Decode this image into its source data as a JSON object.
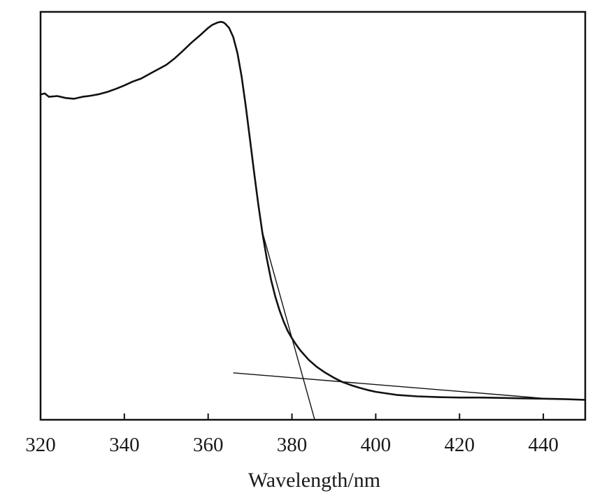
{
  "chart_data": {
    "type": "line",
    "title": "",
    "xlabel": "Wavelength/nm",
    "ylabel": "",
    "xlim": [
      320,
      450
    ],
    "ylim": [
      0,
      1.0
    ],
    "x_ticks": [
      320,
      340,
      360,
      380,
      400,
      420,
      440
    ],
    "x_tick_labels": [
      "320",
      "340",
      "360",
      "380",
      "400",
      "420",
      "440"
    ],
    "y_ticks_shown": false,
    "grid": false,
    "legend": "none",
    "line_color": "#111111",
    "series": [
      {
        "x": [
          320,
          321,
          322,
          324,
          326,
          328,
          330,
          332,
          334,
          336,
          338,
          340,
          342,
          344,
          346,
          348,
          350,
          352,
          354,
          356,
          358,
          359,
          360,
          361,
          362,
          362.5,
          363,
          363.5,
          364,
          365,
          366,
          367,
          368,
          369,
          370,
          371,
          372,
          373,
          374,
          375,
          376,
          377,
          378,
          379,
          380,
          381,
          382,
          384,
          386,
          388,
          390,
          392,
          394,
          396,
          398,
          400,
          405,
          410,
          415,
          420,
          425,
          430,
          435,
          440,
          445,
          450
        ],
        "y": [
          0.803,
          0.806,
          0.797,
          0.799,
          0.794,
          0.792,
          0.797,
          0.8,
          0.804,
          0.81,
          0.818,
          0.827,
          0.837,
          0.845,
          0.857,
          0.869,
          0.881,
          0.898,
          0.918,
          0.939,
          0.958,
          0.968,
          0.978,
          0.986,
          0.991,
          0.993,
          0.994,
          0.993,
          0.99,
          0.978,
          0.954,
          0.912,
          0.85,
          0.771,
          0.684,
          0.596,
          0.512,
          0.436,
          0.372,
          0.317,
          0.273,
          0.237,
          0.207,
          0.182,
          0.163,
          0.146,
          0.131,
          0.106,
          0.087,
          0.072,
          0.059,
          0.048,
          0.04,
          0.033,
          0.027,
          0.022,
          0.014,
          0.01,
          0.008,
          0.007,
          0.007,
          0.006,
          0.005,
          0.004,
          0.003,
          0.001
        ]
      }
    ],
    "annotations": [
      {
        "kind": "tangent-line",
        "x": [
          373,
          385.4
        ],
        "y": [
          0.44,
          -0.05
        ]
      },
      {
        "kind": "baseline-line",
        "x": [
          366,
          440
        ],
        "y": [
          0.072,
          0.005
        ]
      }
    ]
  }
}
